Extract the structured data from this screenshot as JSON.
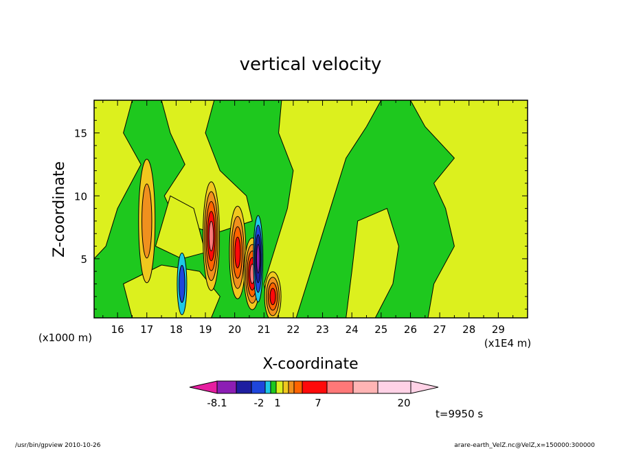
{
  "chart_data": {
    "type": "heatmap",
    "title": "vertical velocity",
    "xlabel": "X-coordinate",
    "ylabel": "Z-coordinate",
    "x_unit": "(x1E4 m)",
    "y_unit": "(x1000 m)",
    "xlim": [
      15.2,
      30
    ],
    "ylim": [
      0.3,
      17.6
    ],
    "x_ticks": [
      "16",
      "17",
      "18",
      "19",
      "20",
      "21",
      "22",
      "23",
      "24",
      "25",
      "26",
      "27",
      "28",
      "29"
    ],
    "y_ticks": [
      "5",
      "10",
      "15"
    ],
    "time_label": "t=9950 s",
    "colorbar": {
      "colors": [
        "#e61ea0",
        "#8c1eb4",
        "#1e1ea0",
        "#1e46dc",
        "#1ec8e6",
        "#1ec81e",
        "#dcf01e",
        "#f0c81e",
        "#f0901e",
        "#ff6400",
        "#ff0a0a",
        "#ff7878",
        "#ffb4b4",
        "#ffd2e6"
      ],
      "labels": [
        "-8.1",
        "-2",
        "1",
        "7",
        "20"
      ]
    },
    "features": [
      {
        "x": 19.2,
        "z": 6.8,
        "peak": 10
      },
      {
        "x": 20.1,
        "z": 5.5,
        "peak": 8
      },
      {
        "x": 20.6,
        "z": 3.8,
        "peak": 14
      },
      {
        "x": 20.8,
        "z": 5.0,
        "peak": -8
      },
      {
        "x": 21.3,
        "z": 2.0,
        "peak": 9
      },
      {
        "x": 17.0,
        "z": 8.0,
        "peak": 3
      },
      {
        "x": 18.2,
        "z": 3.0,
        "peak": -2
      }
    ]
  },
  "footer": {
    "left": "/usr/bin/gpview   2010-10-26",
    "right": "arare-earth_VelZ.nc@VelZ,x=150000:300000"
  }
}
